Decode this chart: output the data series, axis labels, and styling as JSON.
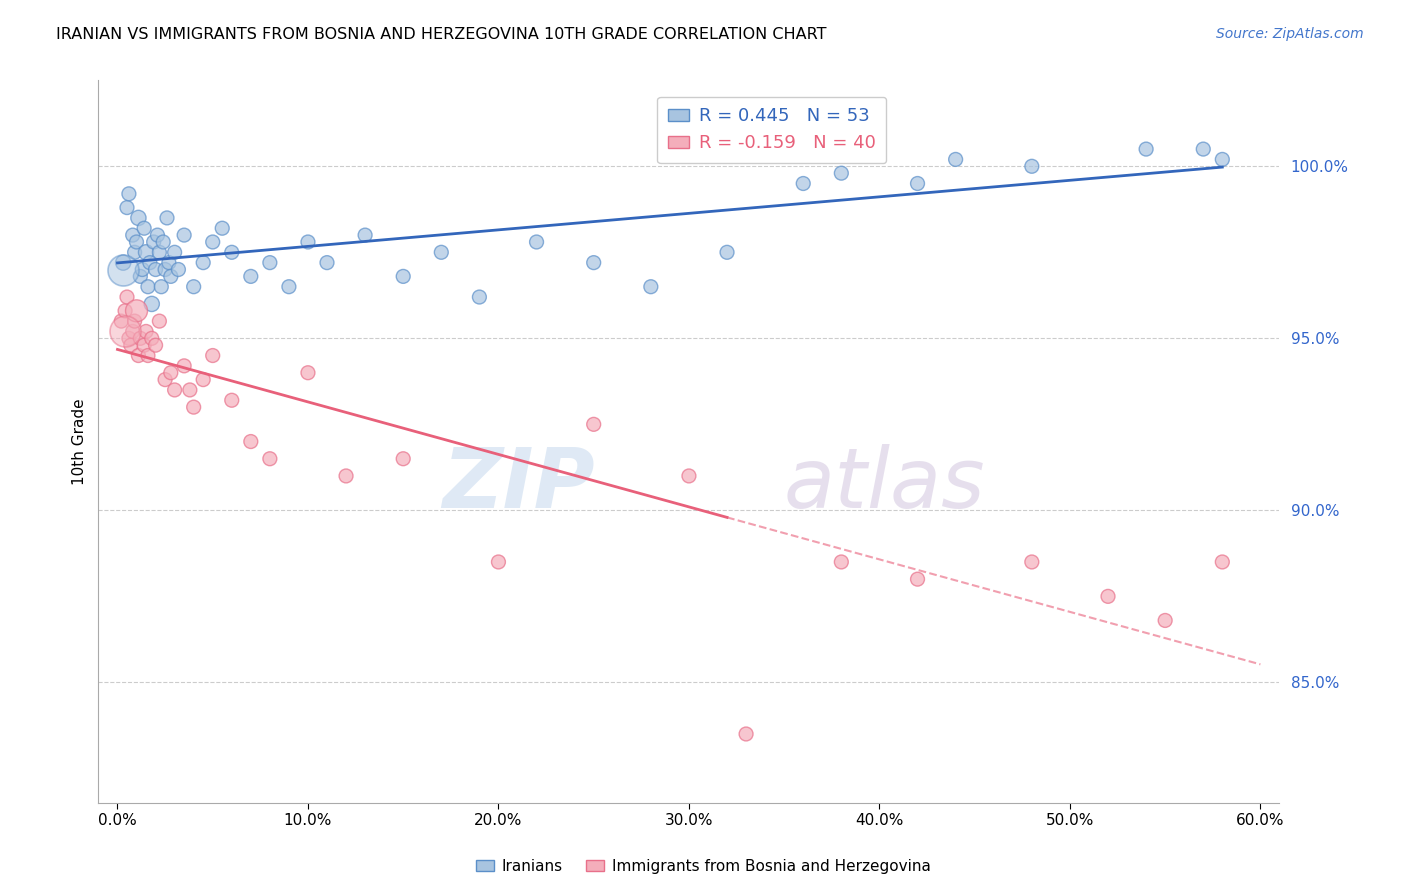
{
  "title": "IRANIAN VS IMMIGRANTS FROM BOSNIA AND HERZEGOVINA 10TH GRADE CORRELATION CHART",
  "source": "Source: ZipAtlas.com",
  "ylabel": "10th Grade",
  "x_tick_labels": [
    "0.0%",
    "10.0%",
    "20.0%",
    "30.0%",
    "40.0%",
    "50.0%",
    "60.0%"
  ],
  "x_tick_values": [
    0,
    10,
    20,
    30,
    40,
    50,
    60
  ],
  "y_tick_labels": [
    "85.0%",
    "90.0%",
    "95.0%",
    "100.0%"
  ],
  "y_tick_values": [
    85,
    90,
    95,
    100
  ],
  "xlim": [
    -1,
    61
  ],
  "ylim": [
    81.5,
    102.5
  ],
  "legend_label_blue": "Iranians",
  "legend_label_pink": "Immigrants from Bosnia and Herzegovina",
  "r_blue": 0.445,
  "n_blue": 53,
  "r_pink": -0.159,
  "n_pink": 40,
  "blue_color": "#A8C4E0",
  "pink_color": "#F4AEBB",
  "blue_edge_color": "#5B8FC9",
  "pink_edge_color": "#E8708A",
  "blue_line_color": "#3366BB",
  "pink_line_color": "#E8607A",
  "watermark_zip_color": "#C5D8EE",
  "watermark_atlas_color": "#D9C8E8",
  "blue_scatter_x": [
    0.3,
    0.5,
    0.6,
    0.8,
    0.9,
    1.0,
    1.1,
    1.2,
    1.3,
    1.4,
    1.5,
    1.6,
    1.7,
    1.8,
    1.9,
    2.0,
    2.1,
    2.2,
    2.3,
    2.4,
    2.5,
    2.6,
    2.7,
    2.8,
    3.0,
    3.2,
    3.5,
    4.0,
    4.5,
    5.0,
    5.5,
    6.0,
    7.0,
    8.0,
    9.0,
    10.0,
    11.0,
    13.0,
    15.0,
    17.0,
    19.0,
    22.0,
    25.0,
    28.0,
    32.0,
    36.0,
    38.0,
    42.0,
    44.0,
    48.0,
    54.0,
    57.0,
    58.0
  ],
  "blue_scatter_y": [
    97.2,
    98.8,
    99.2,
    98.0,
    97.5,
    97.8,
    98.5,
    96.8,
    97.0,
    98.2,
    97.5,
    96.5,
    97.2,
    96.0,
    97.8,
    97.0,
    98.0,
    97.5,
    96.5,
    97.8,
    97.0,
    98.5,
    97.2,
    96.8,
    97.5,
    97.0,
    98.0,
    96.5,
    97.2,
    97.8,
    98.2,
    97.5,
    96.8,
    97.2,
    96.5,
    97.8,
    97.2,
    98.0,
    96.8,
    97.5,
    96.2,
    97.8,
    97.2,
    96.5,
    97.5,
    99.5,
    99.8,
    99.5,
    100.2,
    100.0,
    100.5,
    100.5,
    100.2
  ],
  "blue_scatter_size": [
    120,
    100,
    100,
    100,
    100,
    100,
    120,
    100,
    100,
    100,
    120,
    100,
    100,
    120,
    100,
    100,
    100,
    100,
    100,
    100,
    100,
    100,
    100,
    100,
    100,
    100,
    100,
    100,
    100,
    100,
    100,
    100,
    100,
    100,
    100,
    100,
    100,
    100,
    100,
    100,
    100,
    100,
    100,
    100,
    100,
    100,
    100,
    100,
    100,
    100,
    100,
    100,
    100
  ],
  "pink_scatter_x": [
    0.2,
    0.4,
    0.5,
    0.6,
    0.7,
    0.8,
    0.9,
    1.0,
    1.1,
    1.2,
    1.4,
    1.5,
    1.6,
    1.8,
    2.0,
    2.2,
    2.5,
    3.0,
    3.5,
    4.0,
    5.0,
    6.0,
    8.0,
    10.0,
    12.0,
    15.0,
    20.0,
    25.0,
    30.0,
    33.0,
    38.0,
    42.0,
    48.0,
    52.0,
    55.0,
    58.0,
    2.8,
    3.8,
    4.5,
    7.0
  ],
  "pink_scatter_y": [
    95.5,
    95.8,
    96.2,
    95.0,
    94.8,
    95.2,
    95.5,
    95.8,
    94.5,
    95.0,
    94.8,
    95.2,
    94.5,
    95.0,
    94.8,
    95.5,
    93.8,
    93.5,
    94.2,
    93.0,
    94.5,
    93.2,
    91.5,
    94.0,
    91.0,
    91.5,
    88.5,
    92.5,
    91.0,
    83.5,
    88.5,
    88.0,
    88.5,
    87.5,
    86.8,
    88.5,
    94.0,
    93.5,
    93.8,
    92.0
  ],
  "pink_scatter_size": [
    100,
    100,
    100,
    100,
    100,
    100,
    100,
    250,
    100,
    100,
    100,
    100,
    100,
    100,
    100,
    100,
    100,
    100,
    100,
    100,
    100,
    100,
    100,
    100,
    100,
    100,
    100,
    100,
    100,
    100,
    100,
    100,
    100,
    100,
    100,
    100,
    100,
    100,
    100,
    100
  ],
  "pink_large_dot_x": 0.4,
  "pink_large_dot_y": 95.2,
  "blue_large_dot_x": 0.3,
  "blue_large_dot_y": 97.0
}
